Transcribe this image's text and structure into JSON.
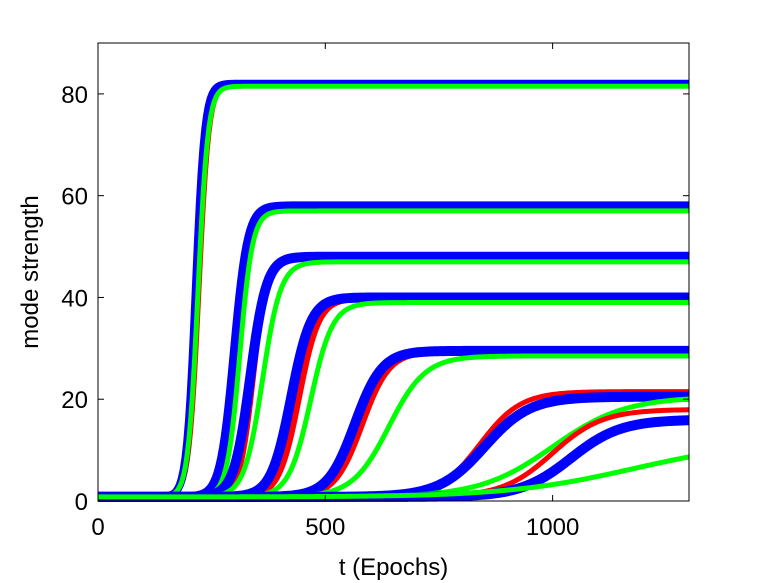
{
  "chart_data": {
    "type": "line",
    "title": "",
    "xlabel": "t (Epochs)",
    "ylabel": "mode strength",
    "xlim": [
      0,
      1300
    ],
    "ylim": [
      0,
      90
    ],
    "xticks": [
      0,
      500,
      1000
    ],
    "yticks": [
      0,
      20,
      40,
      60,
      80
    ],
    "grid": false,
    "legend": "none",
    "colors": {
      "red": "#ff0000",
      "blue": "#0000ff",
      "green": "#00ff00"
    },
    "modes": [
      {
        "red": {
          "t0": 222,
          "w": 11,
          "final": 82,
          "width": 5
        },
        "blue": {
          "t0": 215,
          "w": 10,
          "final": 82,
          "width": 8
        },
        "green": {
          "t0": 220,
          "w": 11,
          "final": 81.5,
          "width": 5
        }
      },
      {
        "red": {
          "t0": 308,
          "w": 13,
          "final": 58,
          "width": 5
        },
        "blue": {
          "t0": 300,
          "w": 15,
          "final": 58,
          "width": 9
        },
        "green": {
          "t0": 312,
          "w": 14,
          "final": 57,
          "width": 5
        }
      },
      {
        "red": {
          "t0": 342,
          "w": 15,
          "final": 48,
          "width": 5
        },
        "blue": {
          "t0": 335,
          "w": 18,
          "final": 48,
          "width": 10
        },
        "green": {
          "t0": 362,
          "w": 20,
          "final": 47,
          "width": 5
        }
      },
      {
        "red": {
          "t0": 440,
          "w": 22,
          "final": 40,
          "width": 8
        },
        "blue": {
          "t0": 425,
          "w": 22,
          "final": 40,
          "width": 10
        },
        "green": {
          "t0": 468,
          "w": 24,
          "final": 39,
          "width": 5
        }
      },
      {
        "red": {
          "t0": 580,
          "w": 30,
          "final": 29.5,
          "width": 7
        },
        "blue": {
          "t0": 565,
          "w": 30,
          "final": 29.5,
          "width": 10
        },
        "green": {
          "t0": 640,
          "w": 40,
          "final": 28.5,
          "width": 5
        }
      },
      {
        "red": {
          "t0": 840,
          "w": 45,
          "final": 21.5,
          "width": 5
        },
        "blue": {
          "t0": 850,
          "w": 50,
          "final": 20.5,
          "width": 10
        },
        "green": {
          "t0": 1000,
          "w": 80,
          "final": 20.5,
          "width": 5
        }
      },
      {
        "red": {
          "t0": 1000,
          "w": 55,
          "final": 18,
          "width": 5
        },
        "blue": {
          "t0": 1040,
          "w": 55,
          "final": 16,
          "width": 10
        },
        "green": {
          "t0": 1180,
          "w": 140,
          "final": 12,
          "width": 5
        }
      }
    ]
  }
}
